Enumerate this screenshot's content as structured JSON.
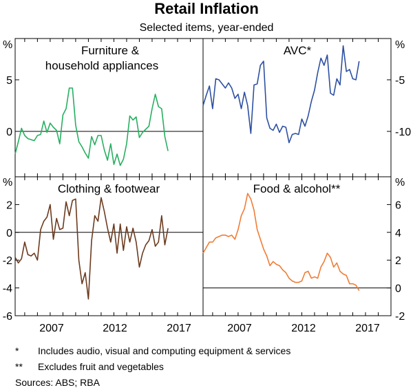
{
  "header": {
    "title": "Retail Inflation",
    "subtitle": "Selected items, year-ended"
  },
  "notes": [
    {
      "mark": "*",
      "text": "Includes audio, visual and computing equipment & services"
    },
    {
      "mark": "**",
      "text": "Excludes fruit and vegetables"
    }
  ],
  "sources": "Sources: ABS; RBA",
  "axis_unit": "%",
  "x_ticks": [
    "2007",
    "2012",
    "2017"
  ],
  "colors": {
    "furniture": "#27ae60",
    "avc": "#2c4fa0",
    "clothing": "#6b3a1e",
    "food": "#f07c35"
  },
  "chart_data": [
    {
      "type": "line",
      "panel": "furniture",
      "title_lines": [
        "Furniture &",
        "household appliances"
      ],
      "axis_side": "left",
      "ylim": [
        -4.4,
        9
      ],
      "yticks": [
        {
          "v": 5,
          "label": "5"
        },
        {
          "v": 0,
          "label": "0"
        }
      ],
      "xlim": [
        2003.75,
        2018.5
      ],
      "x_start": 2003.75,
      "x_step": 0.25,
      "values": [
        -2.2,
        -1,
        0.3,
        -0.4,
        -0.7,
        -0.8,
        -0.9,
        -0.4,
        -0.3,
        1,
        -0.1,
        0.8,
        0.4,
        0.1,
        -1.2,
        1.6,
        2.2,
        4.2,
        4.2,
        0.6,
        -1,
        -1.5,
        -2.1,
        -2.6,
        -0.5,
        -1.3,
        -0.4,
        -0.4,
        -1.8,
        -2.8,
        -1.2,
        -3.2,
        -2.2,
        -3.3,
        -2.7,
        -1.2,
        1.5,
        1.1,
        1.4,
        -0.6,
        -0.1,
        0.2,
        0.5,
        2.2,
        3.6,
        2.4,
        2.2,
        -0.5,
        -1.9
      ],
      "color_key": "furniture"
    },
    {
      "type": "line",
      "panel": "avc",
      "title_lines": [
        "AVC*"
      ],
      "axis_side": "right",
      "ylim": [
        -14.4,
        -1
      ],
      "yticks": [
        {
          "v": -5,
          "label": "-5"
        },
        {
          "v": -10,
          "label": "-10"
        }
      ],
      "xlim": [
        2003.75,
        2018.5
      ],
      "x_start": 2003.75,
      "x_step": 0.25,
      "values": [
        -7.5,
        -6.5,
        -5.6,
        -7.8,
        -4.9,
        -5,
        -5.4,
        -5.8,
        -5.3,
        -5.8,
        -6.8,
        -6.4,
        -7.8,
        -6.2,
        -7.5,
        -10.2,
        -5.5,
        -5.4,
        -3.6,
        -3.2,
        -8.7,
        -9.7,
        -9.9,
        -9.3,
        -10.1,
        -9.5,
        -9.6,
        -11.1,
        -10.3,
        -10.2,
        -10.3,
        -8.8,
        -9.5,
        -8.5,
        -7.1,
        -6,
        -4.3,
        -2.9,
        -3.6,
        -2.6,
        -6.3,
        -6.5,
        -4.9,
        -5.5,
        -1.7,
        -4.2,
        -4,
        -4.9,
        -5,
        -3.2
      ],
      "color_key": "avc"
    },
    {
      "type": "line",
      "panel": "clothing",
      "title_lines": [
        "Clothing & footwear"
      ],
      "axis_side": "left",
      "ylim": [
        -6,
        4
      ],
      "yticks": [
        {
          "v": 2,
          "label": "2"
        },
        {
          "v": 0,
          "label": "0"
        },
        {
          "v": -2,
          "label": "-2"
        },
        {
          "v": -4,
          "label": "-4"
        },
        {
          "v": -6,
          "label": "-6"
        }
      ],
      "xlim": [
        2003.75,
        2018.5
      ],
      "x_start": 2003.75,
      "x_step": 0.25,
      "values": [
        -1.8,
        -2.2,
        -1.9,
        -0.7,
        -1.6,
        -1.7,
        -1.5,
        -2,
        0.2,
        0.8,
        1.1,
        2,
        -0.5,
        1,
        0.2,
        0.3,
        2.2,
        1.2,
        2.3,
        2.4,
        -2,
        -3.7,
        -2.9,
        -4.8,
        -0.6,
        1.2,
        0.8,
        2.5,
        1.5,
        0.3,
        -0.7,
        0.6,
        -1.5,
        0.6,
        -1.3,
        0.4,
        -0.7,
        0.3,
        -0.7,
        -2.5,
        -1.5,
        -0.9,
        -0.6,
        0.2,
        -1,
        -0.7,
        1.2,
        -0.9,
        0.3
      ],
      "color_key": "clothing"
    },
    {
      "type": "line",
      "panel": "food",
      "title_lines": [
        "Food & alcohol**"
      ],
      "axis_side": "right",
      "ylim": [
        -2,
        8
      ],
      "yticks": [
        {
          "v": 6,
          "label": "6"
        },
        {
          "v": 4,
          "label": "4"
        },
        {
          "v": 2,
          "label": "2"
        },
        {
          "v": 0,
          "label": "0"
        },
        {
          "v": -2,
          "label": "-2"
        }
      ],
      "xlim": [
        2003.75,
        2018.5
      ],
      "x_start": 2003.75,
      "x_step": 0.25,
      "values": [
        2.5,
        2.9,
        3.3,
        3.3,
        3.6,
        3.7,
        3.8,
        3.8,
        3.7,
        3.8,
        3.5,
        4.2,
        5.2,
        5.7,
        6.8,
        6.4,
        5.6,
        4.2,
        3.5,
        2.8,
        2.3,
        1.6,
        1.9,
        1.7,
        1.6,
        1.3,
        1.1,
        0.7,
        0.5,
        0.4,
        0.4,
        0.5,
        1.1,
        1.2,
        0.7,
        0.8,
        0.7,
        1.5,
        1.9,
        2.5,
        2.2,
        1.5,
        1.8,
        1.2,
        1,
        0.9,
        0.3,
        0.3,
        0.2,
        -0.2
      ],
      "color_key": "food"
    }
  ]
}
